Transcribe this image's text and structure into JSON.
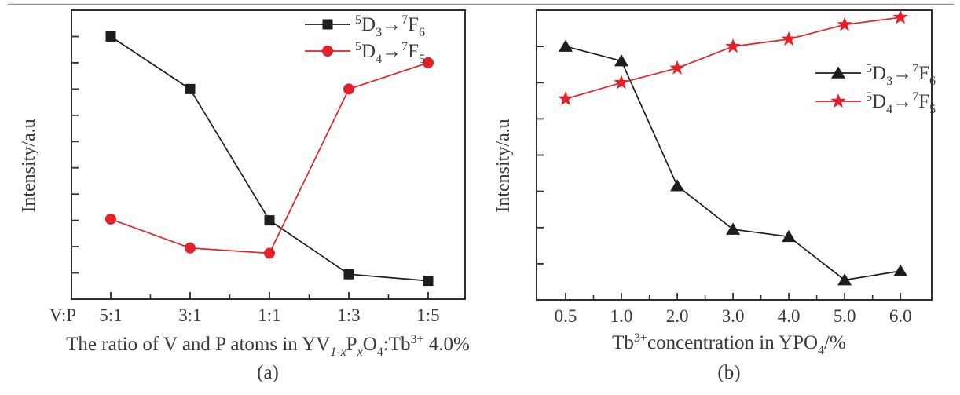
{
  "page": {
    "background": "#ffffff",
    "top_rule_color": "#949494"
  },
  "colors": {
    "axis": "#2f2f2f",
    "text": "#3a3a3a"
  },
  "chart_data": [
    {
      "type": "line",
      "panel": "a",
      "caption": "(a)",
      "ylabel": "Intensity/a.u",
      "xlabel_text": "The ratio of V and P atoms in YV1-xPxO4:Tb3+ 4.0%",
      "xlabel_parts": [
        {
          "t": "The ratio of V and P atoms in YV"
        },
        {
          "t": "1-x",
          "v": "sub",
          "i": true
        },
        {
          "t": "P"
        },
        {
          "t": "x",
          "v": "sub",
          "i": true
        },
        {
          "t": "O"
        },
        {
          "t": "4",
          "v": "sub"
        },
        {
          "t": ":Tb"
        },
        {
          "t": "3+",
          "v": "sup"
        },
        {
          "t": " 4.0%"
        }
      ],
      "x_prefix_label": "V:P",
      "categories": [
        "5:1",
        "3:1",
        "1:1",
        "1:3",
        "1:5"
      ],
      "ylim": [
        0,
        11
      ],
      "y_ticks": [
        1,
        2,
        3,
        4,
        5,
        6,
        7,
        8,
        9,
        10
      ],
      "grid": false,
      "legend_position": "top-right",
      "series": [
        {
          "name": "5D3→7F6",
          "label_parts": [
            {
              "t": "5",
              "v": "sup"
            },
            {
              "t": "D"
            },
            {
              "t": "3",
              "v": "sub"
            },
            {
              "t": "→"
            },
            {
              "t": "7",
              "v": "sup"
            },
            {
              "t": "F"
            },
            {
              "t": "6",
              "v": "sub"
            }
          ],
          "marker": "square",
          "color": "#1d1d1d",
          "values": [
            10.0,
            8.0,
            3.0,
            0.95,
            0.7
          ]
        },
        {
          "name": "5D4→7F5",
          "label_parts": [
            {
              "t": "5",
              "v": "sup"
            },
            {
              "t": "D"
            },
            {
              "t": "4",
              "v": "sub"
            },
            {
              "t": "→"
            },
            {
              "t": "7",
              "v": "sup"
            },
            {
              "t": "F"
            },
            {
              "t": "5",
              "v": "sub"
            }
          ],
          "marker": "circle",
          "color": "#e32129",
          "values": [
            3.05,
            1.95,
            1.75,
            8.0,
            9.0
          ]
        }
      ]
    },
    {
      "type": "line",
      "panel": "b",
      "caption": "(b)",
      "ylabel": "Intensity/a.u",
      "xlabel_text": "Tb3+concentration in YPO4/%",
      "xlabel_parts": [
        {
          "t": "Tb"
        },
        {
          "t": "3+",
          "v": "sup"
        },
        {
          "t": "concentration in YPO"
        },
        {
          "t": "4",
          "v": "sub"
        },
        {
          "t": "/%"
        }
      ],
      "categories": [
        "0.5",
        "1.0",
        "2.0",
        "3.0",
        "4.0",
        "5.0",
        "6.0"
      ],
      "ylim": [
        0,
        8
      ],
      "y_ticks": [
        1,
        2,
        3,
        4,
        5,
        6,
        7
      ],
      "grid": false,
      "legend_position": "middle-right",
      "series": [
        {
          "name": "5D3→7F6",
          "label_parts": [
            {
              "t": "5",
              "v": "sup"
            },
            {
              "t": "D"
            },
            {
              "t": "3",
              "v": "sub"
            },
            {
              "t": "→"
            },
            {
              "t": "7",
              "v": "sup"
            },
            {
              "t": "F"
            },
            {
              "t": "6",
              "v": "sub"
            }
          ],
          "marker": "triangle",
          "color": "#1d1d1d",
          "values": [
            7.0,
            6.6,
            3.15,
            1.95,
            1.75,
            0.55,
            0.8
          ]
        },
        {
          "name": "5D4→7F5",
          "label_parts": [
            {
              "t": "5",
              "v": "sup"
            },
            {
              "t": "D"
            },
            {
              "t": "4",
              "v": "sub"
            },
            {
              "t": "→"
            },
            {
              "t": "7",
              "v": "sup"
            },
            {
              "t": "F"
            },
            {
              "t": "5",
              "v": "sub"
            }
          ],
          "marker": "star",
          "color": "#e32129",
          "values": [
            5.55,
            6.0,
            6.4,
            7.0,
            7.2,
            7.6,
            7.8
          ]
        }
      ]
    }
  ]
}
